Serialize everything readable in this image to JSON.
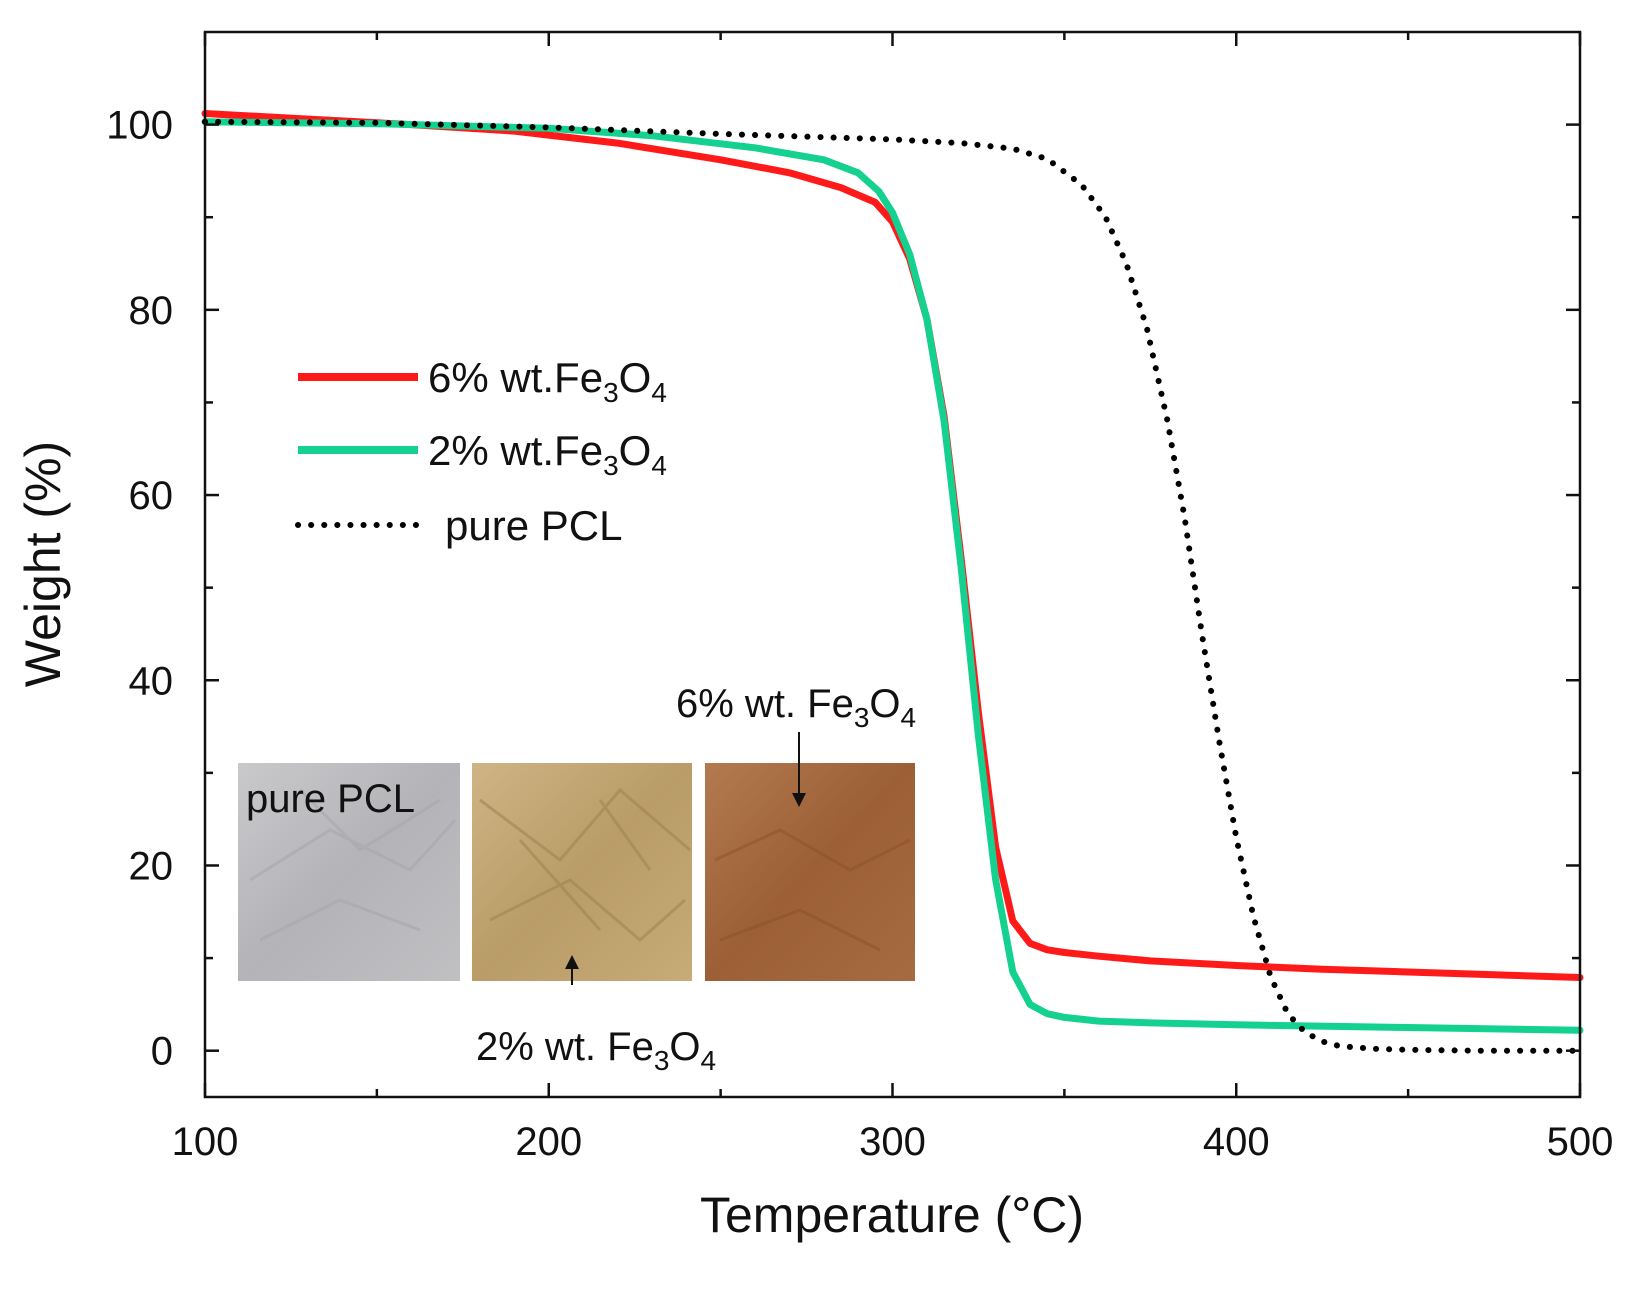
{
  "chart_data": {
    "type": "line",
    "title": "",
    "xlabel": "Temperature (°C)",
    "ylabel": "Weight (%)",
    "xlim": [
      100,
      500
    ],
    "ylim": [
      -5,
      110
    ],
    "x_ticks": [
      100,
      200,
      300,
      400,
      500
    ],
    "y_ticks": [
      0,
      20,
      40,
      60,
      80,
      100
    ],
    "grid": false,
    "legend_position": "upper-left",
    "series": [
      {
        "name": "6% wt.Fe3O4",
        "legend_main": "6% wt.Fe",
        "legend_sub1": "3",
        "legend_mid": "O",
        "legend_sub2": "4",
        "color": "#ff1a1a",
        "style": "solid",
        "x": [
          100,
          130,
          160,
          190,
          220,
          250,
          270,
          285,
          295,
          300,
          305,
          310,
          315,
          320,
          325,
          330,
          335,
          340,
          345,
          350,
          360,
          375,
          400,
          425,
          450,
          475,
          500
        ],
        "y": [
          101.2,
          100.6,
          100.0,
          99.3,
          98.0,
          96.2,
          94.8,
          93.2,
          91.6,
          89.5,
          85.5,
          79.0,
          68.5,
          53.0,
          36.5,
          22.0,
          14.0,
          11.6,
          10.9,
          10.6,
          10.2,
          9.7,
          9.2,
          8.8,
          8.5,
          8.2,
          7.9
        ]
      },
      {
        "name": "2% wt.Fe3O4",
        "legend_main": "2% wt.Fe",
        "legend_sub1": "3",
        "legend_mid": "O",
        "legend_sub2": "4",
        "color": "#14d18f",
        "style": "solid",
        "x": [
          100,
          150,
          200,
          230,
          260,
          280,
          290,
          296,
          300,
          305,
          310,
          315,
          320,
          325,
          330,
          335,
          340,
          345,
          350,
          360,
          375,
          400,
          450,
          500
        ],
        "y": [
          100.3,
          100.1,
          99.6,
          98.8,
          97.5,
          96.2,
          94.8,
          92.8,
          90.5,
          86.0,
          79.0,
          68.0,
          52.0,
          34.0,
          18.5,
          8.5,
          5.0,
          4.0,
          3.6,
          3.2,
          3.0,
          2.8,
          2.5,
          2.2
        ]
      },
      {
        "name": "pure PCL",
        "color": "#000000",
        "style": "dotted",
        "x": [
          100,
          150,
          200,
          250,
          300,
          320,
          335,
          345,
          355,
          362,
          368,
          374,
          380,
          385,
          390,
          395,
          400,
          405,
          410,
          415,
          420,
          425,
          430,
          440,
          450,
          470,
          500
        ],
        "y": [
          100.3,
          100.2,
          99.7,
          99.0,
          98.4,
          98.0,
          97.4,
          96.3,
          93.5,
          90.0,
          85.0,
          78.0,
          68.0,
          57.5,
          45.0,
          33.5,
          23.0,
          14.5,
          8.0,
          4.0,
          2.0,
          1.0,
          0.5,
          0.2,
          0.1,
          0.0,
          0.0
        ]
      }
    ],
    "annotations": [
      {
        "text": "pure PCL",
        "target": "inset photo 1"
      },
      {
        "text_main": "6% wt. Fe",
        "sub1": "3",
        "mid": "O",
        "sub2": "4",
        "target": "inset photo 3"
      },
      {
        "text_main": "2% wt. Fe",
        "sub1": "3",
        "mid": "O",
        "sub2": "4",
        "target": "inset photo 2"
      }
    ]
  },
  "inset_photos": [
    {
      "description": "white PCL film",
      "color": "#b9b8bb"
    },
    {
      "description": "light tan film",
      "color": "#c2a574"
    },
    {
      "description": "brown film",
      "color": "#a4683f"
    }
  ]
}
